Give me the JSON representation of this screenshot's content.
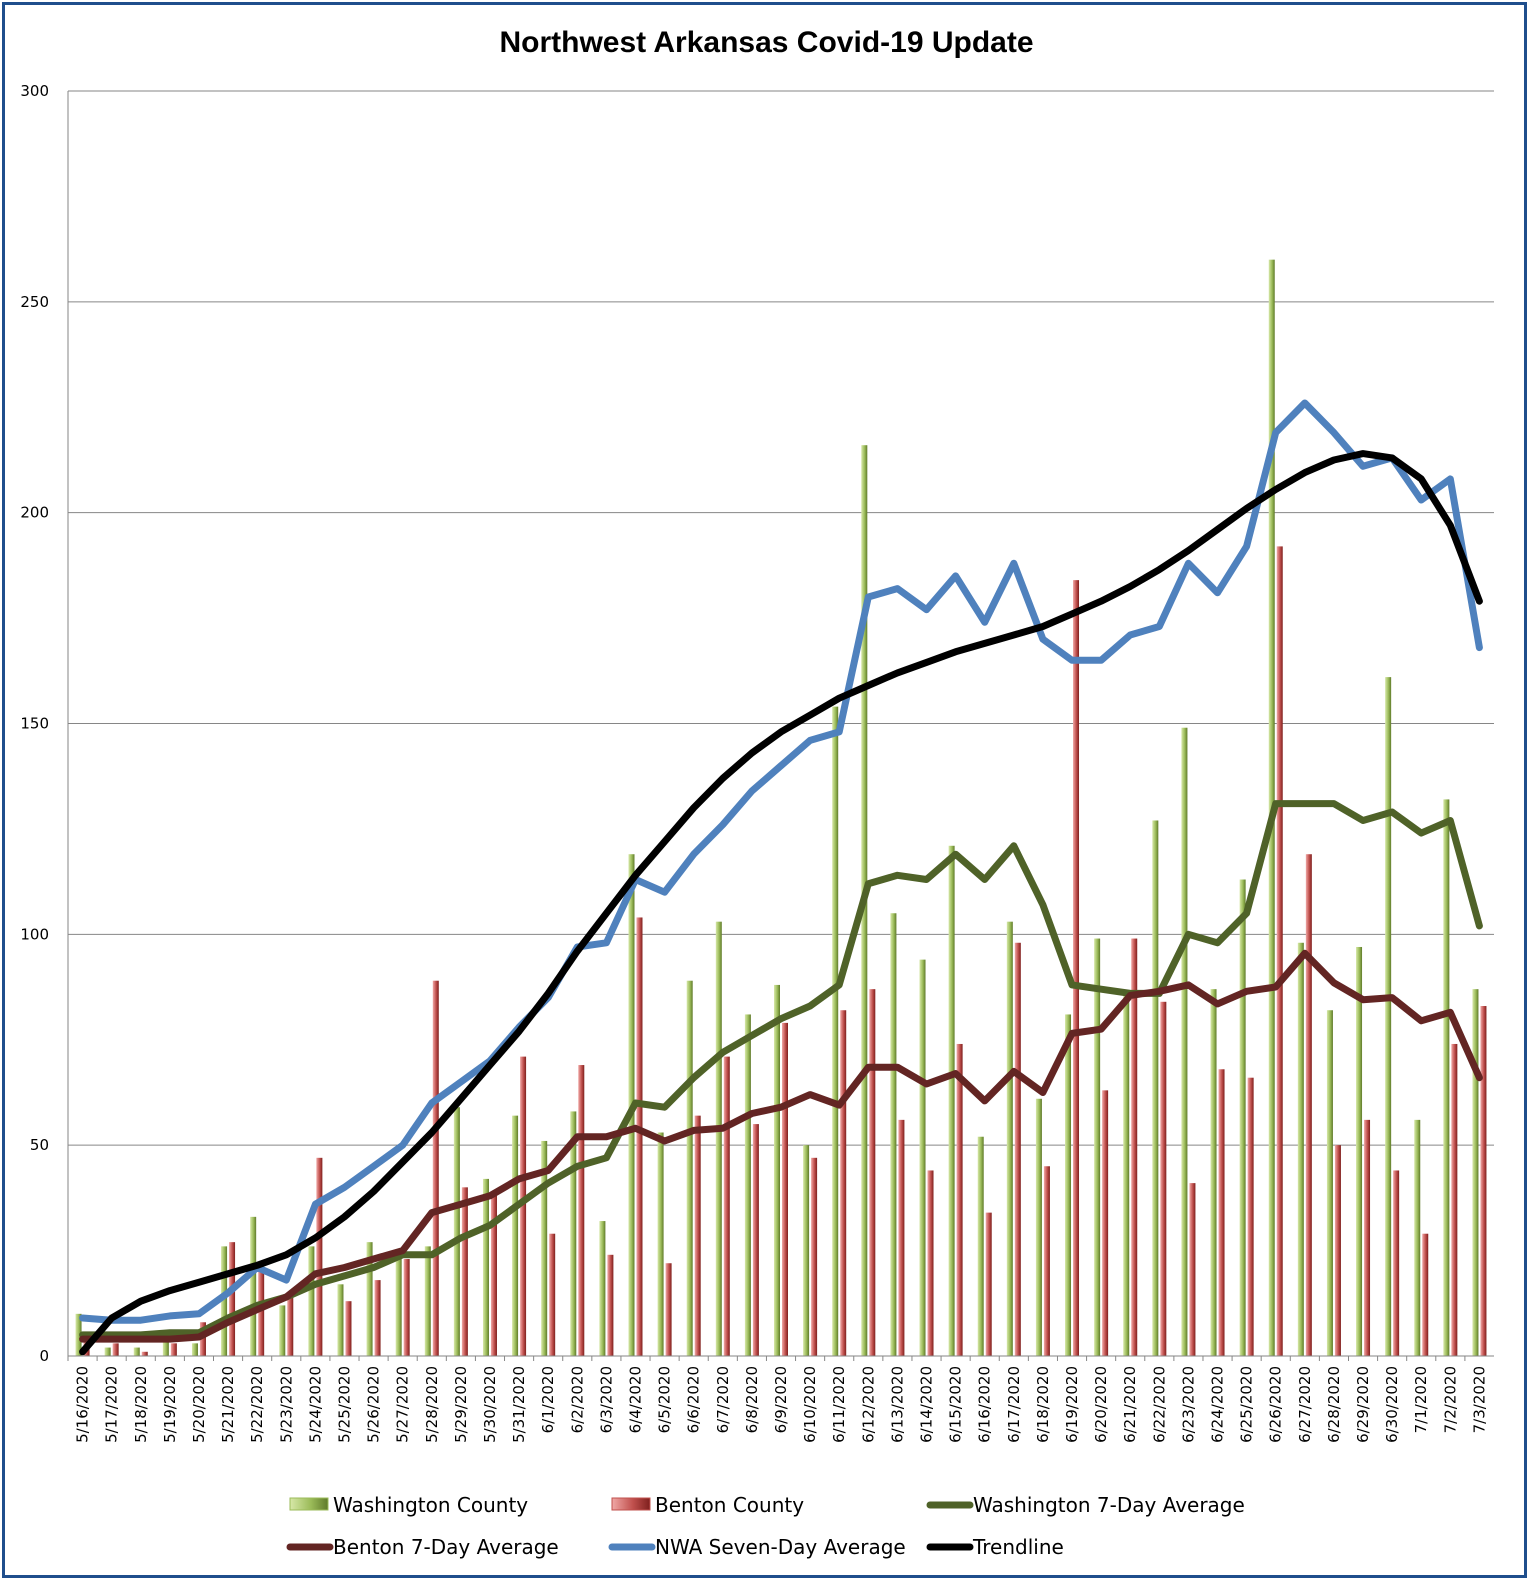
{
  "chart_data": {
    "type": "bar",
    "title": "Northwest Arkansas Covid-19 Update",
    "xlabel": "",
    "ylabel": "",
    "ylim": [
      0,
      300
    ],
    "yticks": [
      0,
      50,
      100,
      150,
      200,
      250,
      300
    ],
    "grid": true,
    "legend_position": "bottom",
    "categories": [
      "5/16/2020",
      "5/17/2020",
      "5/18/2020",
      "5/19/2020",
      "5/20/2020",
      "5/21/2020",
      "5/22/2020",
      "5/23/2020",
      "5/24/2020",
      "5/25/2020",
      "5/26/2020",
      "5/27/2020",
      "5/28/2020",
      "5/29/2020",
      "5/30/2020",
      "5/31/2020",
      "6/1/2020",
      "6/2/2020",
      "6/3/2020",
      "6/4/2020",
      "6/5/2020",
      "6/6/2020",
      "6/7/2020",
      "6/8/2020",
      "6/9/2020",
      "6/10/2020",
      "6/11/2020",
      "6/12/2020",
      "6/13/2020",
      "6/14/2020",
      "6/15/2020",
      "6/16/2020",
      "6/17/2020",
      "6/18/2020",
      "6/19/2020",
      "6/20/2020",
      "6/21/2020",
      "6/22/2020",
      "6/23/2020",
      "6/24/2020",
      "6/25/2020",
      "6/26/2020",
      "6/27/2020",
      "6/28/2020",
      "6/29/2020",
      "6/30/2020",
      "7/1/2020",
      "7/2/2020",
      "7/3/2020"
    ],
    "series": [
      {
        "name": "Washington County",
        "kind": "bar",
        "color": "#9bbb59",
        "values": [
          10,
          2,
          2,
          5,
          3,
          26,
          33,
          12,
          26,
          17,
          27,
          25,
          26,
          59,
          42,
          57,
          51,
          58,
          32,
          119,
          53,
          89,
          103,
          81,
          88,
          50,
          154,
          216,
          105,
          94,
          121,
          52,
          103,
          61,
          81,
          99,
          86,
          127,
          149,
          87,
          113,
          260,
          98,
          82,
          97,
          161,
          56,
          132,
          87
        ]
      },
      {
        "name": "Benton County",
        "kind": "bar",
        "color": "#c0504d",
        "values": [
          4,
          3,
          1,
          3,
          8,
          27,
          20,
          15,
          47,
          13,
          18,
          23,
          89,
          40,
          38,
          71,
          29,
          69,
          24,
          104,
          22,
          57,
          71,
          55,
          79,
          47,
          82,
          87,
          56,
          44,
          74,
          34,
          98,
          45,
          184,
          63,
          99,
          84,
          41,
          68,
          66,
          192,
          119,
          50,
          56,
          44,
          29,
          74,
          83
        ]
      },
      {
        "name": "Washington 7-Day Average",
        "kind": "line",
        "color": "#4f6228",
        "values": [
          5,
          5,
          5,
          5.5,
          5.5,
          9,
          12,
          14,
          17,
          19,
          21,
          24,
          24,
          28,
          31,
          36,
          41,
          45,
          47,
          60,
          59,
          66,
          72,
          76,
          80,
          83,
          88,
          112,
          114,
          113,
          119,
          113,
          121,
          107,
          88,
          87,
          86,
          86,
          100,
          98,
          105,
          131,
          131,
          131,
          127,
          129,
          124,
          127,
          102
        ]
      },
      {
        "name": "Benton 7-Day Average",
        "kind": "line",
        "color": "#632523",
        "values": [
          4,
          4,
          4,
          4,
          4.5,
          8,
          11,
          14,
          19.5,
          21,
          23,
          25,
          34,
          36,
          38,
          42,
          44,
          52,
          52,
          54,
          51,
          53.5,
          54,
          57.5,
          59,
          62,
          59.5,
          68.5,
          68.5,
          64.5,
          67,
          60.5,
          67.5,
          62.5,
          76.5,
          77.5,
          85.5,
          86.5,
          88,
          83.5,
          86.5,
          87.5,
          95.5,
          88.5,
          84.5,
          85,
          79.5,
          81.5,
          66
        ]
      },
      {
        "name": "NWA Seven-Day Average",
        "kind": "line",
        "color": "#4f81bd",
        "values": [
          9,
          8.5,
          8.5,
          9.5,
          10,
          15,
          21,
          18,
          36,
          40,
          45,
          50,
          60,
          65,
          70,
          78,
          85,
          97,
          98,
          113,
          110,
          119,
          126,
          134,
          140,
          146,
          148,
          180,
          182,
          177,
          185,
          174,
          188,
          170,
          165,
          165,
          171,
          173,
          188,
          181,
          192,
          219,
          226,
          219,
          211,
          213,
          203,
          208,
          168
        ]
      },
      {
        "name": "Trendline",
        "kind": "line",
        "color": "#000000",
        "values": [
          1,
          9,
          13,
          15.5,
          17.5,
          19.5,
          21.5,
          24,
          28,
          33,
          39,
          46,
          53,
          61,
          69,
          77,
          86,
          96,
          105,
          114,
          122,
          130,
          137,
          143,
          148,
          152,
          156,
          159,
          162,
          164.5,
          167,
          169,
          171,
          173,
          176,
          179,
          182.5,
          186.5,
          191,
          196,
          201,
          205.5,
          209.5,
          212.5,
          214,
          213,
          208,
          197,
          179
        ]
      }
    ]
  }
}
